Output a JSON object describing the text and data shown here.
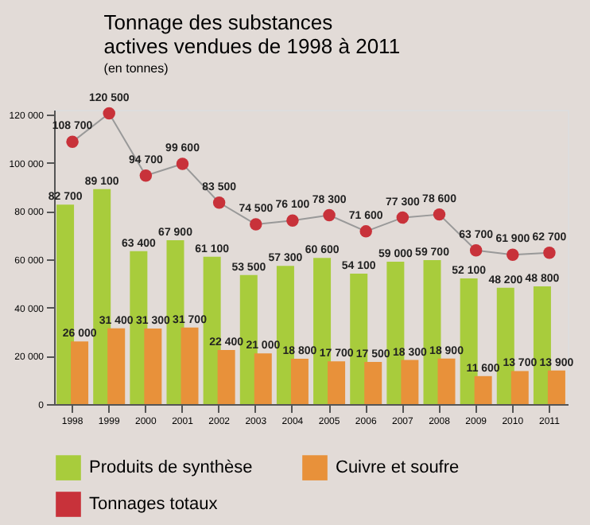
{
  "chart_data": {
    "type": "bar",
    "title": "Tonnage des substances actives vendues de 1998 à 2011",
    "subtitle": "(en tonnes)",
    "categories": [
      "1998",
      "1999",
      "2000",
      "2001",
      "2002",
      "2003",
      "2004",
      "2005",
      "2006",
      "2007",
      "2008",
      "2009",
      "2010",
      "2011"
    ],
    "ylim": [
      0,
      122000
    ],
    "yticks": [
      0,
      {
        "value": 20000,
        "label": "20 000"
      },
      {
        "value": 40000,
        "label": "40 000"
      },
      {
        "value": 60000,
        "label": "60 000"
      },
      {
        "value": 80000,
        "label": "80 000"
      },
      {
        "value": 100000,
        "label": "100 000"
      },
      {
        "value": 120000,
        "label": "120 000"
      }
    ],
    "grid": false,
    "legend": "bottom",
    "data_labels": true,
    "series": [
      {
        "name": "Produits de synthèse",
        "color": "#a8cc3c",
        "values": [
          82700,
          89100,
          63400,
          67900,
          61100,
          53500,
          57300,
          60600,
          54100,
          59000,
          59700,
          52100,
          48200,
          48800
        ]
      },
      {
        "name": "Cuivre et soufre",
        "color": "#e8913a",
        "values": [
          26000,
          31400,
          31300,
          31700,
          22400,
          21000,
          18800,
          17700,
          17500,
          18300,
          18900,
          11600,
          13700,
          13900
        ]
      },
      {
        "name": "Tonnages totaux",
        "type": "line",
        "marker": "circle",
        "color": "#c8323a",
        "values": [
          108700,
          120500,
          94700,
          99600,
          83500,
          74500,
          76100,
          78300,
          71600,
          77300,
          78600,
          63700,
          61900,
          62700
        ]
      }
    ]
  }
}
